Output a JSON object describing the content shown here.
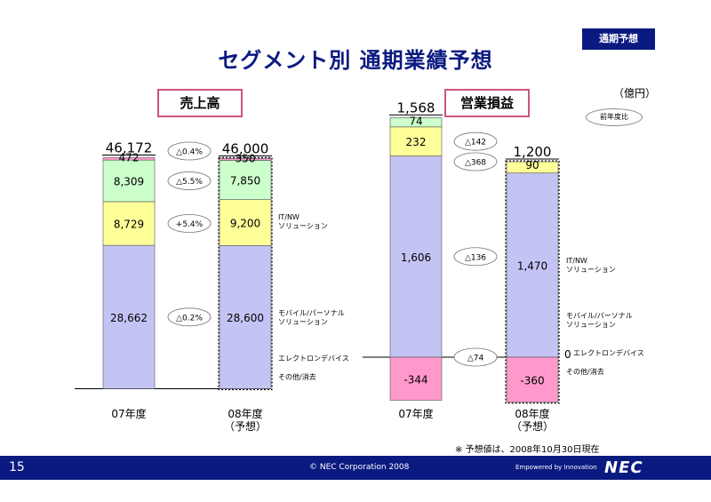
{
  "header": {
    "title": "セグメント別 通期業績予想",
    "tag": "通期予想"
  },
  "unit_label": "（億円）",
  "prev_year_label": "前年度比",
  "footer": {
    "page": "15",
    "copyright": "© NEC Corporation 2008",
    "powered": "Empowered by Innovation",
    "logo": "NEC"
  },
  "note": "※ 予想値は、2008年10月30日現在",
  "colors": {
    "it_nw": "#c4c4f4",
    "mobile": "#ffff99",
    "electron": "#ccffcc",
    "other": "#ff99cc",
    "title": "#0b1a80"
  },
  "chart_data": [
    {
      "type": "bar",
      "stacked": true,
      "title": "売上高",
      "categories": [
        "07年度",
        "08年度\n（予想）"
      ],
      "totals": [
        "46,172",
        "46,000"
      ],
      "series": [
        {
          "name": "IT/NW\nソリューション",
          "values": [
            28662,
            28600
          ],
          "labels": [
            "28,662",
            "28,600"
          ],
          "change": "△0.2%"
        },
        {
          "name": "モバイル/パーソナル\nソリューション",
          "values": [
            8729,
            9200
          ],
          "labels": [
            "8,729",
            "9,200"
          ],
          "change": "+5.4%"
        },
        {
          "name": "エレクトロンデバイス",
          "values": [
            8309,
            7850
          ],
          "labels": [
            "8,309",
            "7,850"
          ],
          "change": "△5.5%"
        },
        {
          "name": "その他/消去",
          "values": [
            472,
            350
          ],
          "labels": [
            "472",
            "350"
          ]
        }
      ],
      "total_change": "△0.4%"
    },
    {
      "type": "bar",
      "stacked": true,
      "title": "営業損益",
      "categories": [
        "07年度",
        "08年度\n（予想）"
      ],
      "totals": [
        "1,568",
        "1,200"
      ],
      "series": [
        {
          "name": "IT/NW\nソリューション",
          "values": [
            1606,
            1470
          ],
          "labels": [
            "1,606",
            "1,470"
          ],
          "change": "△136"
        },
        {
          "name": "モバイル/パーソナル\nソリューション",
          "values": [
            232,
            90
          ],
          "labels": [
            "232",
            "90"
          ],
          "change": "△142"
        },
        {
          "name": "エレクトロンデバイス",
          "values": [
            74,
            0
          ],
          "labels": [
            "74",
            "0"
          ],
          "change": "△74"
        },
        {
          "name": "その他/消去",
          "values": [
            -344,
            -360
          ],
          "labels": [
            "-344",
            "-360"
          ]
        }
      ],
      "total_change": "△368"
    }
  ]
}
